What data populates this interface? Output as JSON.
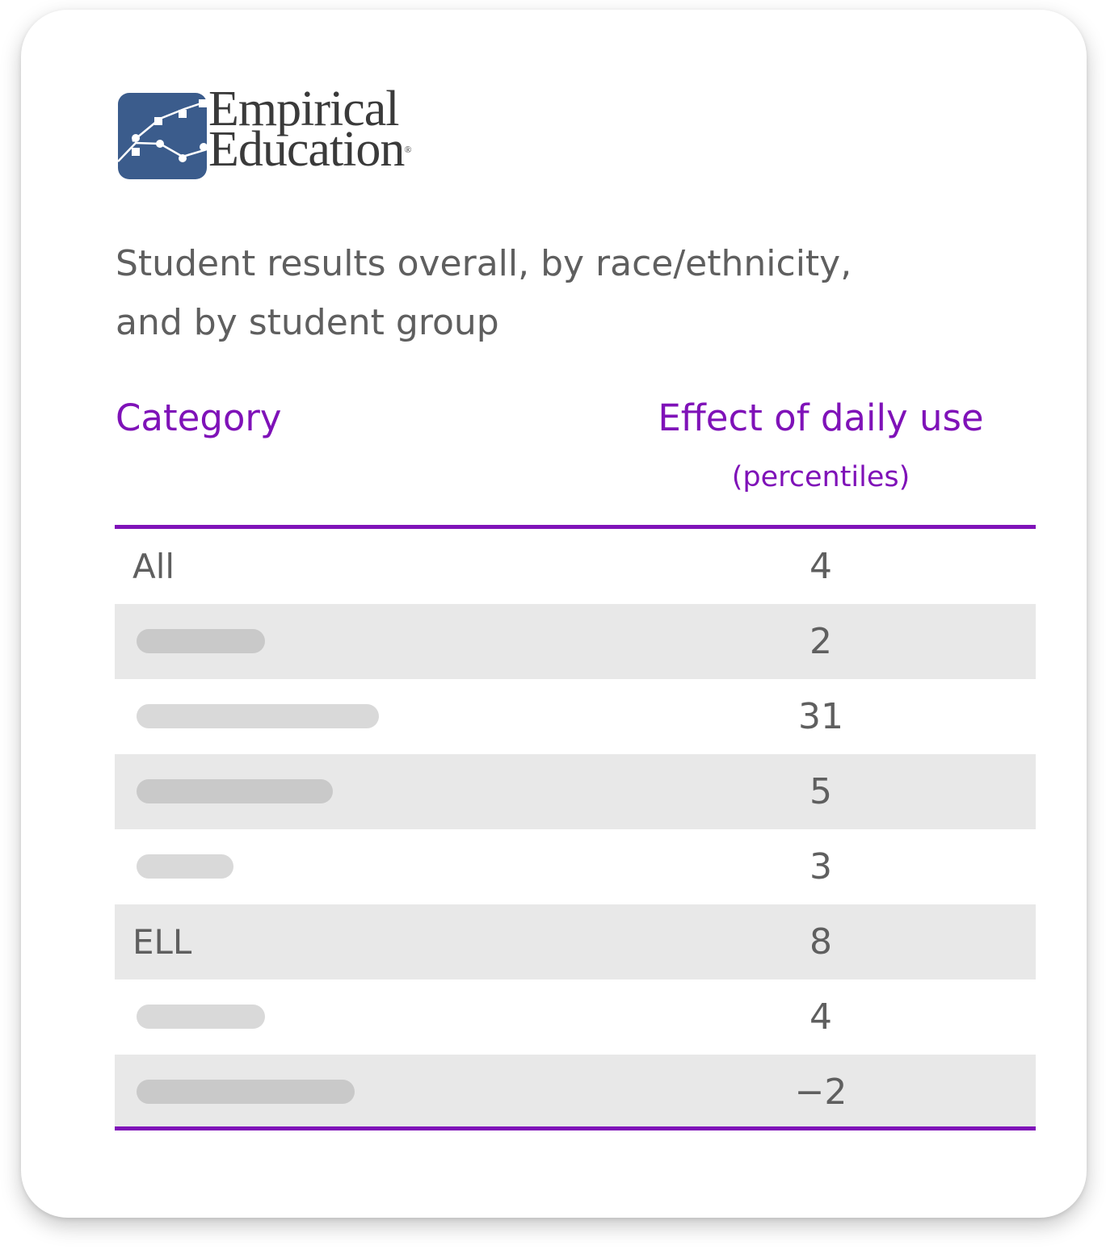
{
  "brand": {
    "name_line1": "Empirical",
    "name_line2": "Education",
    "registered_mark": "®",
    "mark_color": "#3b5c8c",
    "text_color": "#3a3a3a"
  },
  "subtitle": {
    "line1": "Student results overall, by race/ethnicity,",
    "line2": "and by student group"
  },
  "table": {
    "accent_color": "#7f12b8",
    "headers": {
      "category": "Category",
      "effect": "Effect of daily use",
      "effect_unit": "(percentiles)"
    },
    "rows": [
      {
        "category": "All",
        "value": "4",
        "category_redacted": false
      },
      {
        "category": "",
        "value": "2",
        "category_redacted": true
      },
      {
        "category": "",
        "value": "31",
        "category_redacted": true
      },
      {
        "category": "",
        "value": "5",
        "category_redacted": true
      },
      {
        "category": "",
        "value": "3",
        "category_redacted": true
      },
      {
        "category": "ELL",
        "value": "8",
        "category_redacted": false
      },
      {
        "category": "",
        "value": "4",
        "category_redacted": true
      },
      {
        "category": "",
        "value": "−2",
        "category_redacted": true
      }
    ]
  }
}
